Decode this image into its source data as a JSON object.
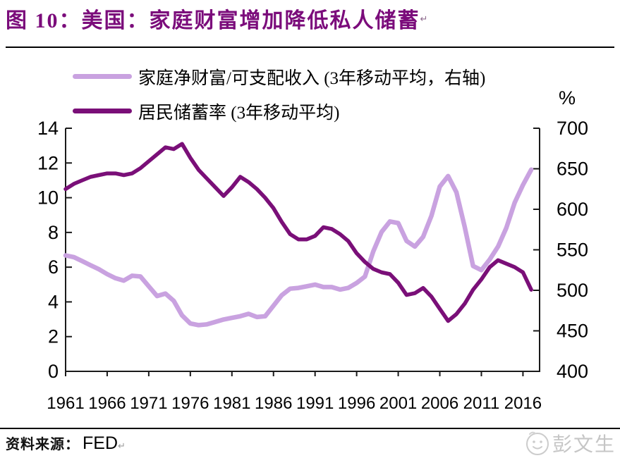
{
  "title": {
    "figure_label": "图 10：",
    "text": "美国：家庭财富增加降低私人储蓄",
    "end_mark": "↵"
  },
  "legend": [
    {
      "label": "家庭净财富/可支配收入 (3年移动平均，右轴)",
      "color": "#c9a2e0"
    },
    {
      "label": "居民储蓄率 (3年移动平均)",
      "color": "#7a0f78"
    }
  ],
  "source": {
    "label": "资料来源：",
    "value": "FED",
    "end_mark": "↵"
  },
  "watermark": {
    "text": "彭文生"
  },
  "chart_data": {
    "type": "line",
    "title": "图 10：美国：家庭财富增加降低私人储蓄",
    "grid": false,
    "legend_position": "top-left",
    "x": [
      1961,
      1962,
      1963,
      1964,
      1965,
      1966,
      1967,
      1968,
      1969,
      1970,
      1971,
      1972,
      1973,
      1974,
      1975,
      1976,
      1977,
      1978,
      1979,
      1980,
      1981,
      1982,
      1983,
      1984,
      1985,
      1986,
      1987,
      1988,
      1989,
      1990,
      1991,
      1992,
      1993,
      1994,
      1995,
      1996,
      1997,
      1998,
      1999,
      2000,
      2001,
      2002,
      2003,
      2004,
      2005,
      2006,
      2007,
      2008,
      2009,
      2010,
      2011,
      2012,
      2013,
      2014,
      2015,
      2016,
      2017
    ],
    "x_axis": {
      "min": 1961,
      "max": 2018
    },
    "x_ticks": [
      1961,
      1966,
      1971,
      1976,
      1981,
      1986,
      1991,
      1996,
      2001,
      2006,
      2011,
      2016
    ],
    "left_axis": {
      "min": 0,
      "max": 14,
      "ticks": [
        0,
        2,
        4,
        6,
        8,
        10,
        12,
        14
      ]
    },
    "right_axis": {
      "min": 400,
      "max": 700,
      "ticks": [
        400,
        450,
        500,
        550,
        600,
        650,
        700
      ],
      "unit": "%"
    },
    "series": [
      {
        "name": "家庭净财富/可支配收入 (3年移动平均，右轴)",
        "axis": "right",
        "color": "#c9a2e0",
        "width": 6.5,
        "values": [
          543,
          541,
          536,
          531,
          526,
          520,
          515,
          512,
          518,
          517,
          505,
          493,
          496,
          487,
          469,
          459,
          457,
          458,
          461,
          464,
          466,
          468,
          471,
          467,
          468,
          481,
          494,
          502,
          503,
          505,
          507,
          504,
          504,
          501,
          503,
          509,
          517,
          548,
          572,
          585,
          583,
          561,
          554,
          566,
          592,
          628,
          641,
          621,
          578,
          530,
          525,
          538,
          554,
          577,
          608,
          630,
          649
        ]
      },
      {
        "name": "居民储蓄率 (3年移动平均)",
        "axis": "left",
        "color": "#7a0f78",
        "width": 5.5,
        "values": [
          10.5,
          10.8,
          11.0,
          11.2,
          11.3,
          11.4,
          11.4,
          11.3,
          11.4,
          11.7,
          12.1,
          12.5,
          12.9,
          12.8,
          13.1,
          12.3,
          11.6,
          11.1,
          10.6,
          10.1,
          10.6,
          11.2,
          10.9,
          10.5,
          10.0,
          9.4,
          8.6,
          7.9,
          7.6,
          7.6,
          7.8,
          8.3,
          8.2,
          7.9,
          7.5,
          6.8,
          6.3,
          5.9,
          5.7,
          5.6,
          5.1,
          4.4,
          4.5,
          4.8,
          4.3,
          3.6,
          2.9,
          3.3,
          3.9,
          4.7,
          5.3,
          6.0,
          6.4,
          6.2,
          6.0,
          5.7,
          4.7
        ]
      }
    ]
  }
}
